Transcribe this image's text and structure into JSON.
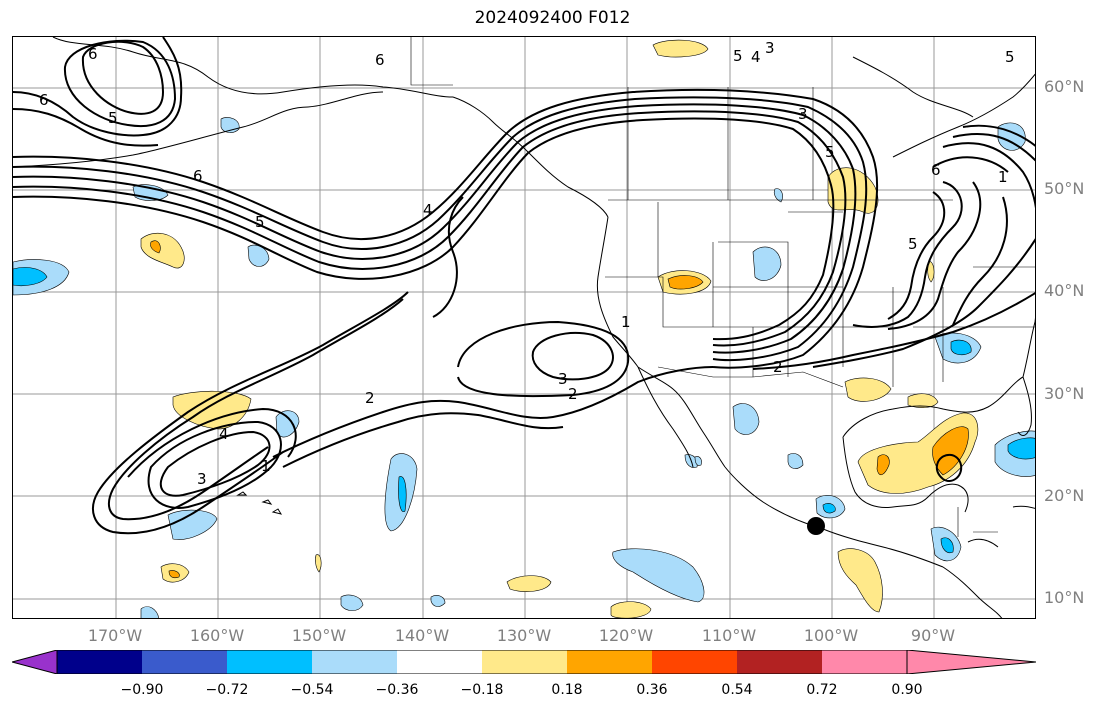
{
  "title": "2024092400 F012",
  "map": {
    "lat_labels": [
      "60°N",
      "50°N",
      "40°N",
      "30°N",
      "20°N",
      "10°N"
    ],
    "lon_labels": [
      "170°W",
      "160°W",
      "150°W",
      "140°W",
      "130°W",
      "120°W",
      "110°W",
      "100°W",
      "90°W"
    ],
    "contour_labels": [
      "6",
      "5",
      "4",
      "3",
      "2",
      "1",
      "6",
      "5",
      "4",
      "3",
      "2",
      "1",
      "3",
      "2",
      "2",
      "1",
      "1",
      "2",
      "3",
      "4",
      "5",
      "6"
    ],
    "marker": "storm-center-dot"
  },
  "colorbar": {
    "ticks": [
      "−0.90",
      "−0.72",
      "−0.54",
      "−0.36",
      "−0.18",
      "0.18",
      "0.36",
      "0.54",
      "0.72",
      "0.90"
    ],
    "colors": [
      "#9932cc",
      "#00008b",
      "#3a5bcc",
      "#00bfff",
      "#aadcfa",
      "#ffffff",
      "#ffe98a",
      "#ffa500",
      "#ff4500",
      "#b22222",
      "#ff88aa"
    ]
  }
}
